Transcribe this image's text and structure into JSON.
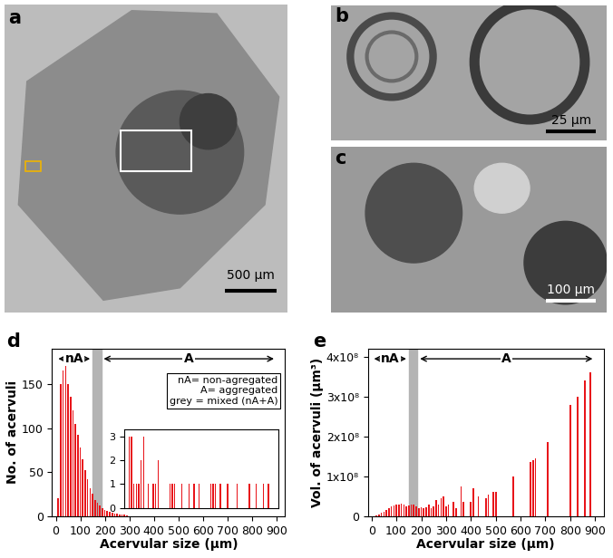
{
  "panels": [
    {
      "label": "a",
      "type": "image",
      "scale_bar": "500 µm"
    },
    {
      "label": "b",
      "type": "image",
      "scale_bar": "25 µm"
    },
    {
      "label": "c",
      "type": "image",
      "scale_bar": "100 µm"
    }
  ],
  "chart_data": [
    {
      "label": "d",
      "type": "bar",
      "x_label": "Acervular size (µm)",
      "y_label": "No. of acervuli",
      "x": [
        10,
        20,
        30,
        40,
        50,
        60,
        70,
        80,
        90,
        100,
        110,
        120,
        130,
        140,
        150,
        160,
        170,
        180,
        190,
        200,
        210,
        220,
        230,
        240,
        250,
        260,
        270,
        280,
        290
      ],
      "values": [
        20,
        150,
        165,
        170,
        150,
        135,
        120,
        105,
        92,
        78,
        65,
        52,
        42,
        32,
        25,
        18,
        15,
        12,
        9,
        7,
        6,
        5,
        4,
        3,
        3,
        2,
        2,
        2,
        1
      ],
      "color": "#e8141a",
      "xlim": [
        -15,
        935
      ],
      "xticks": [
        0,
        100,
        200,
        300,
        400,
        500,
        600,
        700,
        800,
        900
      ],
      "ylim": [
        0,
        190
      ],
      "yticks": [
        0,
        50,
        100,
        150
      ],
      "mixed_range": [
        150,
        185
      ],
      "regions": [
        {
          "label": "nA",
          "range": [
            0,
            150
          ]
        },
        {
          "label": "A",
          "range": [
            185,
            900
          ]
        }
      ],
      "note": [
        "nA= non-agregated",
        "A= aggregated",
        "grey = mixed (nA+A)"
      ],
      "inset": {
        "type": "bar",
        "x": [
          300,
          310,
          320,
          330,
          340,
          350,
          360,
          380,
          400,
          410,
          420,
          470,
          480,
          490,
          520,
          550,
          570,
          590,
          640,
          650,
          660,
          680,
          710,
          750,
          800,
          830,
          860,
          880
        ],
        "values": [
          3,
          3,
          1,
          1,
          1,
          2,
          3,
          1,
          1,
          1,
          2,
          1,
          1,
          1,
          1,
          1,
          1,
          1,
          1,
          1,
          1,
          1,
          1,
          1,
          1,
          1,
          1,
          1
        ],
        "color": "#e8141a",
        "xlim": [
          280,
          920
        ],
        "ylim": [
          0,
          3.3
        ],
        "yticks": [
          0,
          1,
          2,
          3
        ],
        "tick_labels": "y"
      }
    },
    {
      "label": "e",
      "type": "bar",
      "x_label": "Acervular size (µm)",
      "y_label": "Vol. of acervuli (µm³)",
      "x": [
        20,
        30,
        40,
        50,
        60,
        70,
        80,
        90,
        100,
        110,
        120,
        130,
        140,
        150,
        160,
        170,
        180,
        190,
        200,
        210,
        220,
        230,
        240,
        250,
        260,
        270,
        280,
        290,
        300,
        310,
        330,
        340,
        360,
        370,
        400,
        410,
        430,
        460,
        470,
        490,
        500,
        570,
        640,
        650,
        660,
        710,
        800,
        830,
        860,
        880
      ],
      "values": [
        2000000.0,
        5000000.0,
        8000000.0,
        12000000.0,
        16000000.0,
        20000000.0,
        24000000.0,
        27000000.0,
        30000000.0,
        29000000.0,
        32000000.0,
        30000000.0,
        25000000.0,
        26000000.0,
        28000000.0,
        30000000.0,
        25000000.0,
        20000000.0,
        22000000.0,
        20000000.0,
        23000000.0,
        30000000.0,
        20000000.0,
        25000000.0,
        40000000.0,
        30000000.0,
        45000000.0,
        50000000.0,
        25000000.0,
        30000000.0,
        35000000.0,
        20000000.0,
        75000000.0,
        35000000.0,
        35000000.0,
        70000000.0,
        50000000.0,
        45000000.0,
        55000000.0,
        60000000.0,
        62000000.0,
        100000000.0,
        135000000.0,
        140000000.0,
        145000000.0,
        185000000.0,
        280000000.0,
        300000000.0,
        340000000.0,
        360000000.0
      ],
      "color": "#e8141a",
      "xlim": [
        -15,
        935
      ],
      "xticks": [
        0,
        100,
        200,
        300,
        400,
        500,
        600,
        700,
        800,
        900
      ],
      "ylim": [
        0,
        420000000.0
      ],
      "yticks": [
        0,
        {
          "value": 100000000.0,
          "label": "1x10⁸"
        },
        {
          "value": 200000000.0,
          "label": "2x10⁸"
        },
        {
          "value": 300000000.0,
          "label": "3x10⁸"
        },
        {
          "value": 400000000.0,
          "label": "4x10⁸"
        }
      ],
      "mixed_range": [
        150,
        185
      ],
      "regions": [
        {
          "label": "nA",
          "range": [
            0,
            150
          ]
        },
        {
          "label": "A",
          "range": [
            185,
            900
          ]
        }
      ]
    }
  ]
}
